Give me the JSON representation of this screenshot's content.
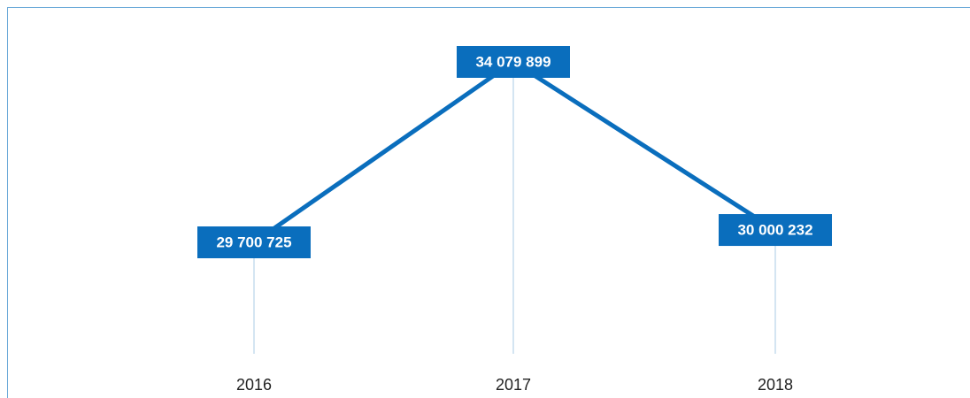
{
  "chart_data": {
    "type": "line",
    "categories": [
      "2016",
      "2017",
      "2018"
    ],
    "values": [
      29700725,
      34079899,
      30000232
    ],
    "value_labels": [
      "29 700 725",
      "34 079 899",
      "30 000 232"
    ],
    "color": "#0a6ebd"
  }
}
